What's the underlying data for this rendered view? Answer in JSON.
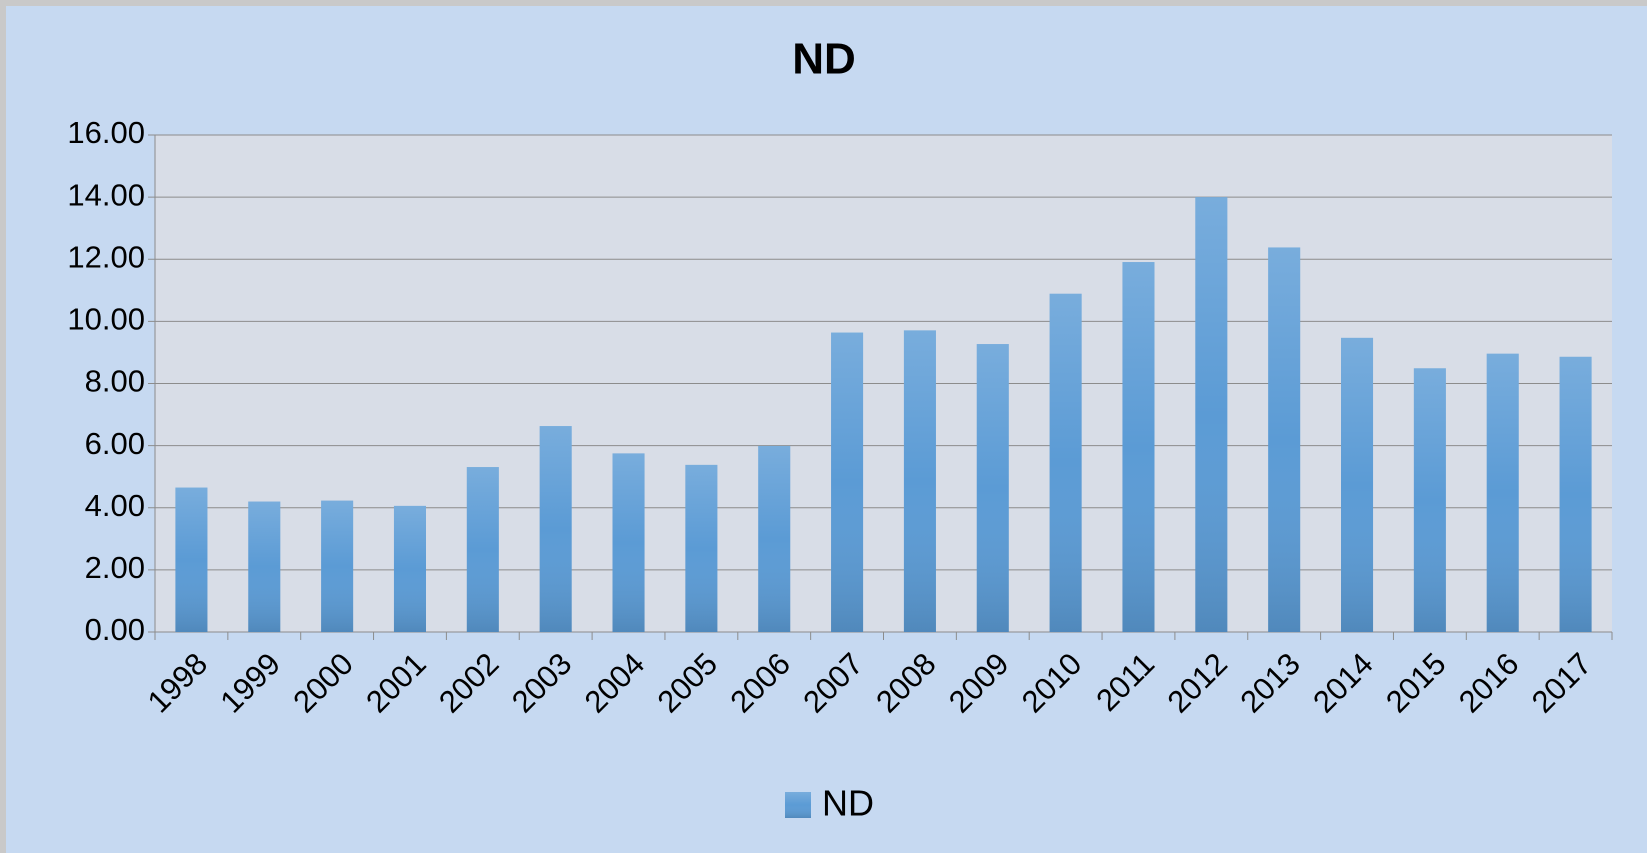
{
  "chart_data": {
    "type": "bar",
    "title": "ND",
    "categories": [
      "1998",
      "1999",
      "2000",
      "2001",
      "2002",
      "2003",
      "2004",
      "2005",
      "2006",
      "2007",
      "2008",
      "2009",
      "2010",
      "2011",
      "2012",
      "2013",
      "2014",
      "2015",
      "2016",
      "2017"
    ],
    "series": [
      {
        "name": "ND",
        "color": "#5b9bd5",
        "values": [
          4.65,
          4.2,
          4.23,
          4.06,
          5.31,
          6.63,
          5.75,
          5.38,
          5.99,
          9.64,
          9.71,
          9.27,
          10.89,
          11.91,
          14.0,
          12.38,
          9.47,
          8.49,
          8.96,
          8.86
        ]
      }
    ],
    "ylim": [
      0,
      16
    ],
    "yticks": [
      {
        "value": 0,
        "label": "0.00"
      },
      {
        "value": 2,
        "label": "2.00"
      },
      {
        "value": 4,
        "label": "4.00"
      },
      {
        "value": 6,
        "label": "6.00"
      },
      {
        "value": 8,
        "label": "8.00"
      },
      {
        "value": 10,
        "label": "10.00"
      },
      {
        "value": 12,
        "label": "12.00"
      },
      {
        "value": 14,
        "label": "14.00"
      },
      {
        "value": 16,
        "label": "16.00"
      }
    ],
    "grid": true,
    "legend": "bottom"
  }
}
